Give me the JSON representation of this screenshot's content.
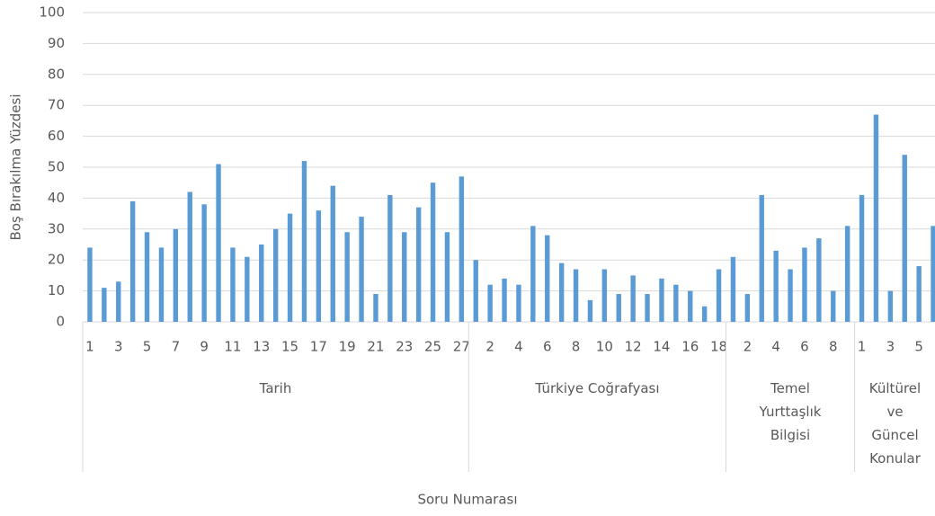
{
  "chart_data": {
    "type": "bar",
    "y_label": "Boş Bırakılma Yüzdesi",
    "x_label": "Soru Numarası",
    "groups": [
      {
        "label": "Tarih",
        "categories": [
          "1",
          null,
          "3",
          null,
          "5",
          null,
          "7",
          null,
          "9",
          null,
          "11",
          null,
          "13",
          null,
          "15",
          null,
          "17",
          null,
          "19",
          null,
          "21",
          null,
          "23",
          null,
          "25",
          null,
          "27"
        ]
      },
      {
        "label": "Türkiye Coğrafyası",
        "categories": [
          null,
          "2",
          null,
          "4",
          null,
          "6",
          null,
          "8",
          null,
          "10",
          null,
          "12",
          null,
          "14",
          null,
          "16",
          null,
          "18"
        ]
      },
      {
        "label": "Temel Yurttaşlık Bilgisi",
        "categories": [
          null,
          "2",
          null,
          "4",
          null,
          "6",
          null,
          "8",
          null
        ]
      },
      {
        "label": "Kültürel ve Güncel Konular",
        "categories": [
          "1",
          null,
          "3",
          null,
          "5",
          null
        ]
      }
    ],
    "values": [
      24,
      11,
      13,
      39,
      29,
      24,
      30,
      42,
      38,
      51,
      24,
      21,
      25,
      30,
      35,
      52,
      36,
      44,
      29,
      34,
      9,
      41,
      29,
      37,
      45,
      29,
      47,
      20,
      12,
      14,
      12,
      31,
      28,
      19,
      17,
      7,
      17,
      9,
      15,
      9,
      14,
      12,
      10,
      5,
      17,
      21,
      9,
      41,
      23,
      17,
      24,
      27,
      10,
      31,
      41,
      67,
      10,
      54,
      18,
      31
    ],
    "color": "#5b9bd5",
    "ylim": [
      0,
      100
    ],
    "yticks": [
      0,
      10,
      20,
      30,
      40,
      50,
      60,
      70,
      80,
      90,
      100
    ],
    "grid": true
  }
}
